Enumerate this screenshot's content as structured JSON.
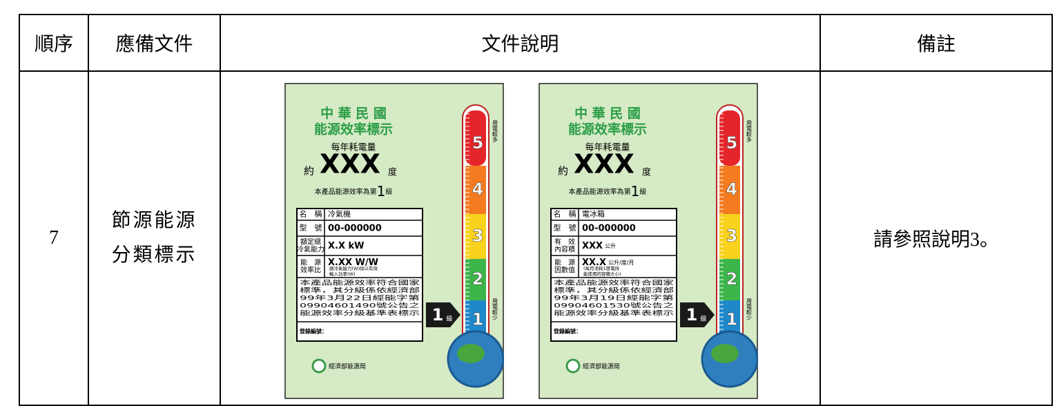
{
  "table": {
    "headers": [
      "順序",
      "應備文件",
      "文件說明",
      "備註"
    ],
    "rows": [
      {
        "number": "7",
        "document": [
          "節源能源",
          "分類標示"
        ],
        "remark": "請參照說明3。"
      }
    ]
  },
  "labels": [
    {
      "title": [
        "中 華 民 國",
        "能源效率標示"
      ],
      "heading": "每年耗電量",
      "approx": "約",
      "amount": "XXX",
      "unit": "度",
      "grade_before": "本產品能源效率為第",
      "grade": "1",
      "grade_after": "級",
      "fields": [
        {
          "name": [
            "名　稱"
          ],
          "value": "冷氣機"
        },
        {
          "name": [
            "型　號"
          ],
          "value": "00-000000"
        },
        {
          "name": [
            "額定總",
            "冷氣能力"
          ],
          "value": "X.X kW"
        },
        {
          "name": [
            "能　源",
            "效率比"
          ],
          "value": "X.XX W/W",
          "note": [
            "總冷氣能力(W)除以有效",
            "輸入功率(W)"
          ]
        }
      ],
      "statement": [
        "本產品能源效率符合國家",
        "標準，其分級係依經濟部",
        "99年3月22日經能字第",
        "09904601490號公告之",
        "能源效率分級基準表標示"
      ],
      "registration": "登錄編號：",
      "agency": "經濟部能源局",
      "badge_grade": "1",
      "badge_unit": "級",
      "scale": [
        "5",
        "4",
        "3",
        "2",
        "1"
      ],
      "more": "用電較多",
      "less": "用電較少"
    },
    {
      "title": [
        "中 華 民 國",
        "能源效率標示"
      ],
      "heading": "每年耗電量",
      "approx": "約",
      "amount": "XXX",
      "unit": "度",
      "grade_before": "本產品能源效率為第",
      "grade": "1",
      "grade_after": "級",
      "fields": [
        {
          "name": [
            "名　稱"
          ],
          "value": "電冰箱"
        },
        {
          "name": [
            "型　號"
          ],
          "value": "00-000000"
        },
        {
          "name": [
            "有　效",
            "內容積"
          ],
          "value": "XXX",
          "unit": "公升"
        },
        {
          "name": [
            "能　源",
            "因數值"
          ],
          "value": "XX.X",
          "unit": "公升/度/月",
          "note": [
            "(每月消耗1度電所",
            "能使用的容積大小)"
          ]
        }
      ],
      "statement": [
        "本產品能源效率符合國家",
        "標準，其分級係依經濟部",
        "99年3月19日經能字第",
        "09904601530號公告之",
        "能源效率分級基準表標示"
      ],
      "registration": "登錄編號：",
      "agency": "經濟部能源局",
      "badge_grade": "1",
      "badge_unit": "級",
      "scale": [
        "5",
        "4",
        "3",
        "2",
        "1"
      ],
      "more": "用電較多",
      "less": "用電較少"
    }
  ]
}
